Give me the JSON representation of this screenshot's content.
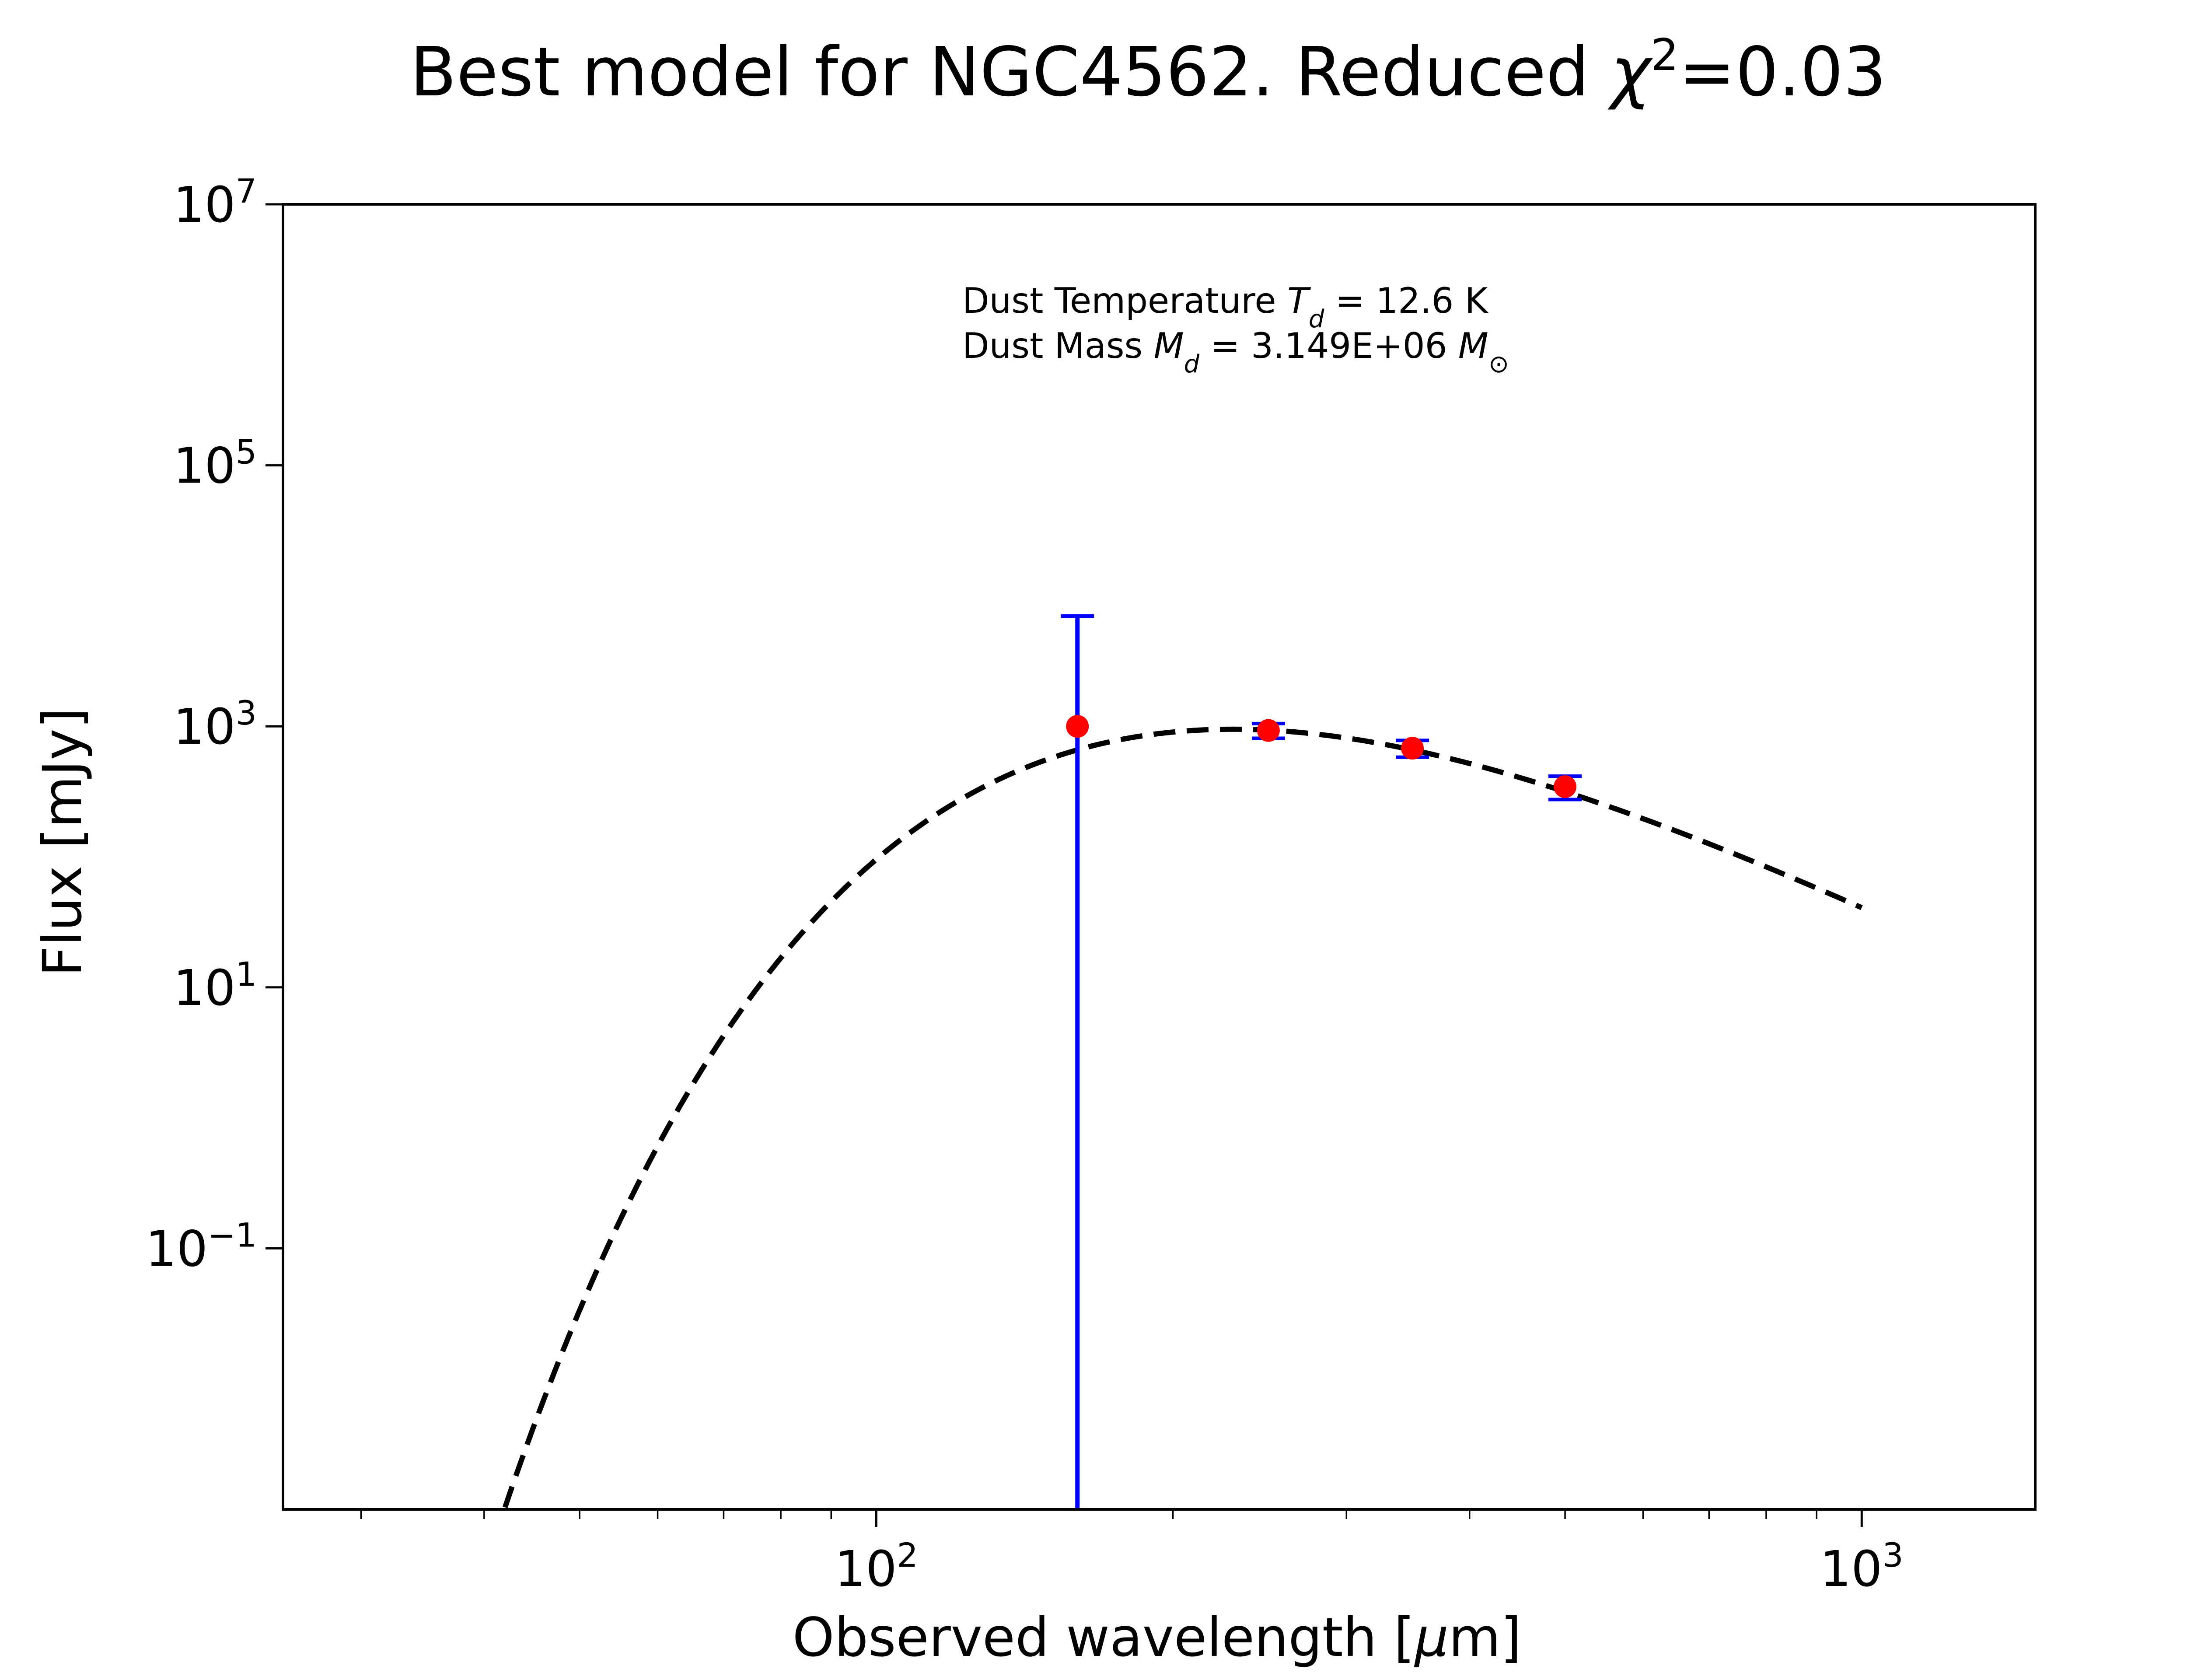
{
  "chart_data": {
    "type": "scatter",
    "title_prefix": "Best model for NGC4562. Reduced ",
    "title_chi": "χ",
    "title_chi_exp": "2",
    "title_suffix": "=0.03",
    "xlabel_prefix": "Observed wavelength [",
    "xlabel_mu": "μ",
    "xlabel_suffix": "m]",
    "ylabel": "Flux [mJy]",
    "x_scale": "log",
    "y_scale": "log",
    "xlim": [
      25,
      1500
    ],
    "ylim": [
      0.001,
      10000000
    ],
    "x_ticks": [
      {
        "value": 100,
        "base": "10",
        "exp": "2"
      },
      {
        "value": 1000,
        "base": "10",
        "exp": "3"
      }
    ],
    "y_ticks": [
      {
        "value": 0.1,
        "base": "10",
        "exp": "−1"
      },
      {
        "value": 10,
        "base": "10",
        "exp": "1"
      },
      {
        "value": 1000,
        "base": "10",
        "exp": "3"
      },
      {
        "value": 100000,
        "base": "10",
        "exp": "5"
      },
      {
        "value": 10000000,
        "base": "10",
        "exp": "7"
      }
    ],
    "annotations": {
      "temp_prefix": "Dust Temperature ",
      "temp_sym": "T",
      "temp_sub": "d",
      "temp_suffix": " = 12.6 K",
      "mass_prefix": "Dust Mass ",
      "mass_sym": "M",
      "mass_sub": "d",
      "mass_value": " = 3.149E+06 ",
      "mass_unit_sym": "M",
      "mass_unit_sub": "⊙"
    },
    "model": {
      "style": "dashed",
      "color": "#000000",
      "temperature_K": 12.6,
      "peak_flux": 950,
      "x_range": [
        42,
        1000
      ]
    },
    "points": [
      {
        "x": 160,
        "y": 1000,
        "yerr_low": 1000,
        "yerr_high": 6000
      },
      {
        "x": 250,
        "y": 930,
        "yerr_low": 120,
        "yerr_high": 120
      },
      {
        "x": 350,
        "y": 680,
        "yerr_low": 100,
        "yerr_high": 100
      },
      {
        "x": 500,
        "y": 345,
        "yerr_low": 70,
        "yerr_high": 70
      }
    ],
    "point_color": "#ff0000",
    "errorbar_color": "#0000ff",
    "grid": false
  }
}
